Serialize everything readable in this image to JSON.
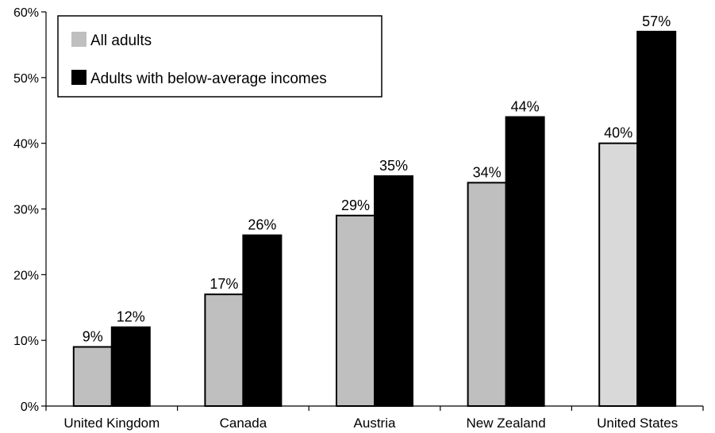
{
  "chart_data": {
    "type": "bar",
    "title": "",
    "xlabel": "",
    "ylabel": "",
    "categories": [
      "United Kingdom",
      "Canada",
      "Austria",
      "New Zealand",
      "United States"
    ],
    "series": [
      {
        "name": "All adults",
        "values": [
          9,
          17,
          29,
          34,
          40
        ],
        "labels": [
          "9%",
          "17%",
          "29%",
          "34%",
          "40%"
        ],
        "color": "#bfbfbf"
      },
      {
        "name": "Adults with below-average incomes",
        "values": [
          12,
          26,
          35,
          44,
          57
        ],
        "labels": [
          "12%",
          "26%",
          "35%",
          "44%",
          "57%"
        ],
        "color": "#000000"
      }
    ],
    "ylim": [
      0,
      60
    ],
    "yticks": [
      0,
      10,
      20,
      30,
      40,
      50,
      60
    ],
    "ytick_labels": [
      "0%",
      "10%",
      "20%",
      "30%",
      "40%",
      "50%",
      "60%"
    ],
    "grid": false,
    "legend": "top-left",
    "special_colors": {
      "United States": "#d9d9d9"
    }
  }
}
